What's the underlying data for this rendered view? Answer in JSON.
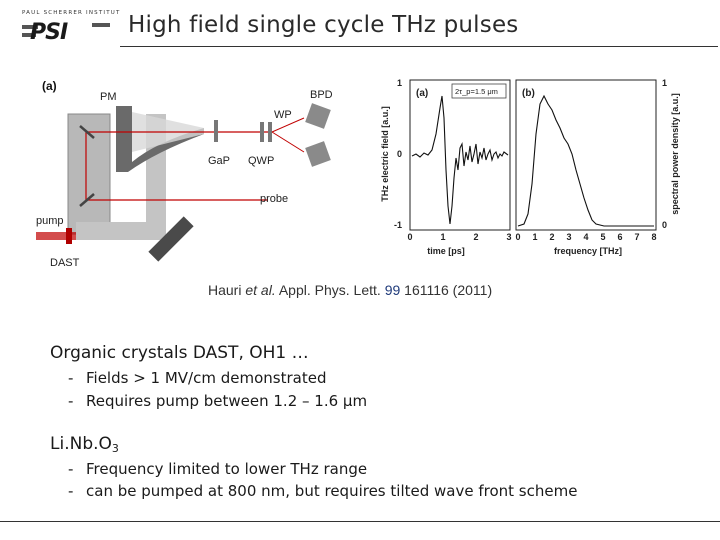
{
  "logo": {
    "tagline": "PAUL SCHERRER INSTITUT",
    "word": "PSI"
  },
  "title": "High field single cycle THz pulses",
  "setup_figure": {
    "panel_label": "(a)",
    "labels": {
      "pm": "PM",
      "wp": "WP",
      "bpd": "BPD",
      "gap": "GaP",
      "qwp": "QWP",
      "probe": "probe",
      "pump": "pump",
      "dast": "DAST"
    }
  },
  "graphs": {
    "panel_a": {
      "label": "(a)",
      "annotation": "2τ_p=1.5 μm",
      "ylabel": "THz electric field [a.u.]",
      "xlabel": "time [ps]",
      "xticks": [
        "0",
        "1",
        "2",
        "3"
      ],
      "yticks": [
        "1",
        "0",
        "-1"
      ]
    },
    "panel_b": {
      "label": "(b)",
      "ylabel": "spectral power density [a.u.]",
      "xlabel": "frequency [THz]",
      "xticks": [
        "0",
        "1",
        "2",
        "3",
        "4",
        "5",
        "6",
        "7",
        "8"
      ],
      "yticks": [
        "1",
        "0"
      ]
    }
  },
  "citation": {
    "authors": "Hauri",
    "etal": "et al.",
    "journal": "Appl. Phys. Lett.",
    "volume": "99",
    "rest": "161116 (2011)"
  },
  "sections": [
    {
      "heading": "Organic crystals DAST, OH1 …",
      "bullets": [
        "Fields > 1 MV/cm demonstrated",
        "Requires pump between 1.2 – 1.6 μm"
      ]
    },
    {
      "heading_main": "Li.Nb.O",
      "heading_sub": "3",
      "bullets": [
        "Frequency limited to lower THz range",
        "can be pumped at 800 nm, but requires tilted wave front scheme"
      ]
    }
  ],
  "bullet_dash": "-"
}
